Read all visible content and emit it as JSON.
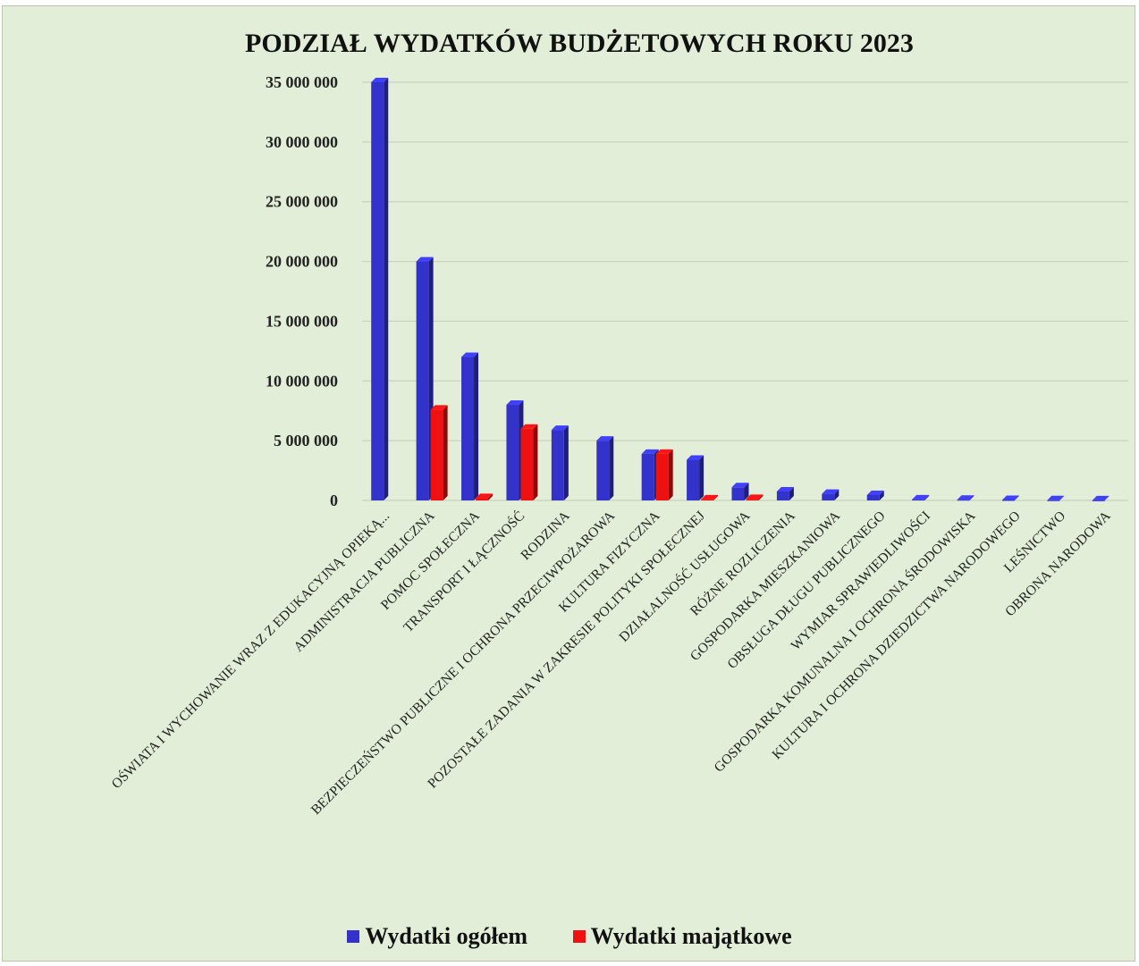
{
  "chart_data": {
    "type": "bar",
    "title": "PODZIAŁ WYDATKÓW  BUDŻETOWYCH  ROKU 2023",
    "categories": [
      "OŚWIATA I WYCHOWANIE WRAZ Z EDUKACYJNĄ OPIEKĄ...",
      "ADMINISTRACJA PUBLICZNA",
      "POMOC SPOŁECZNA",
      "TRANSPORT I ŁĄCZNOŚĆ",
      "RODZINA",
      "BEZPIECZEŃSTWO PUBLICZNE I OCHRONA PRZECIWPOŻAROWA",
      "KULTURA FIZYCZNA",
      "POZOSTAŁE ZADANIA W ZAKRESIE POLITYKI SPOŁECZNEJ",
      "DZIAŁALNOŚĆ USŁUGOWA",
      "RÓŻNE ROZLICZENIA",
      "GOSPODARKA MIESZKANIOWA",
      "OBSŁUGA DŁUGU PUBLICZNEGO",
      "WYMIAR SPRAWIEDLIWOŚCI",
      "GOSPODARKA KOMUNALNA I OCHRONA ŚRODOWISKA",
      "KULTURA I OCHRONA DZIEDZICTWA NARODOWEGO",
      "LEŚNICTWO",
      "OBRONA NARODOWA"
    ],
    "series": [
      {
        "name": "Wydatki ogółem",
        "color": "#3333cc",
        "values": [
          35000000,
          20000000,
          12000000,
          8000000,
          5900000,
          5000000,
          3900000,
          3400000,
          1100000,
          750000,
          550000,
          450000,
          80000,
          60000,
          40000,
          20000,
          10000
        ]
      },
      {
        "name": "Wydatki majątkowe",
        "color": "#ee1111",
        "values": [
          0,
          7600000,
          200000,
          6000000,
          0,
          0,
          3900000,
          80000,
          120000,
          0,
          0,
          0,
          0,
          0,
          0,
          0,
          0
        ]
      }
    ],
    "y_tick_labels": [
      "0",
      "5 000 000",
      "10 000 000",
      "15 000 000",
      "20 000 000",
      "25 000 000",
      "30 000 000",
      "35 000 000"
    ],
    "ylim": [
      0,
      35000000
    ],
    "ytick_step": 5000000,
    "grid": true,
    "legend_position": "bottom"
  },
  "legend": {
    "items": [
      {
        "label": "Wydatki ogółem",
        "color": "#3333cc"
      },
      {
        "label": "Wydatki majątkowe",
        "color": "#ee1111"
      }
    ]
  }
}
